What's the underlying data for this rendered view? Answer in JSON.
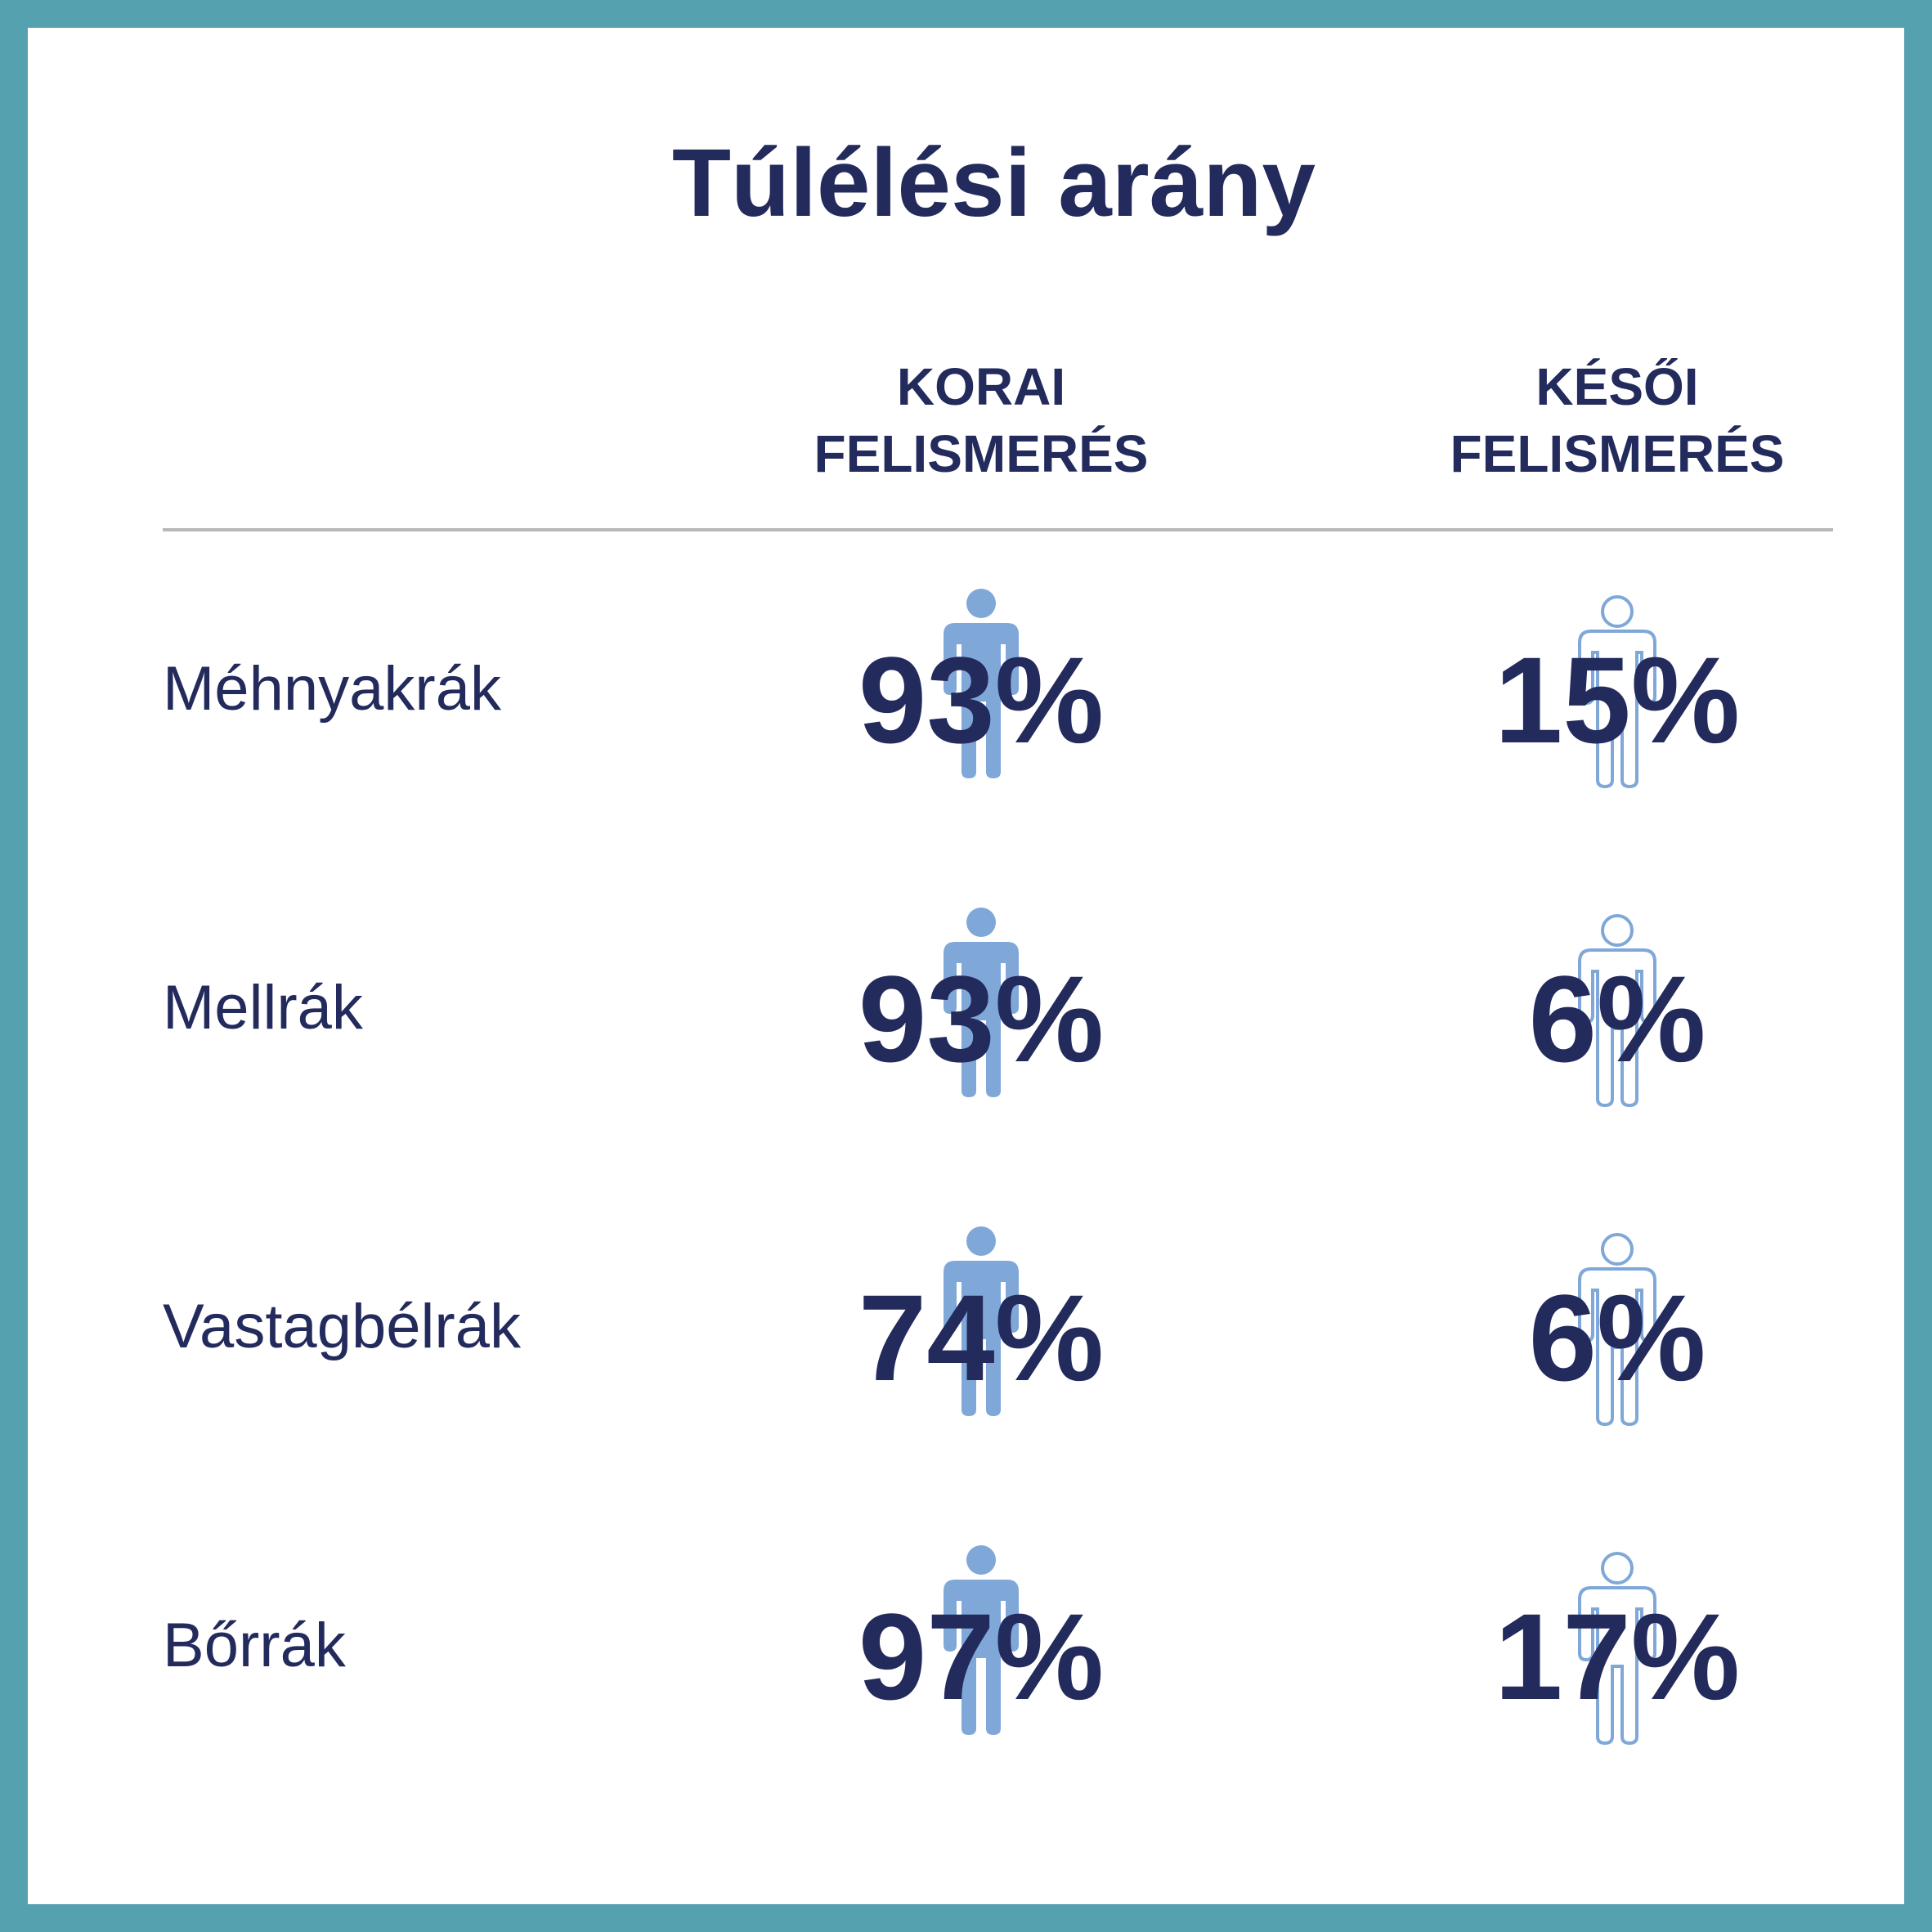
{
  "title": "Túlélési arány",
  "columns": {
    "early": {
      "line1": "KORAI",
      "line2": "FELISMERÉS"
    },
    "late": {
      "line1": "KÉSŐI",
      "line2": "FELISMERÉS"
    }
  },
  "colors": {
    "frame": "#55A1B0",
    "text": "#232A5C",
    "figure_filled": "#7FA8D9",
    "figure_outline": "#7FA8D9",
    "divider": "#B8B8B8"
  },
  "icons": {
    "early": "person-filled-icon",
    "late": "person-outline-icon"
  },
  "rows": [
    {
      "label": "Méhnyakrák",
      "early": "93%",
      "late": "15%"
    },
    {
      "label": "Mellrák",
      "early": "93%",
      "late": "6%"
    },
    {
      "label": "Vastagbélrák",
      "early": "74%",
      "late": "6%"
    },
    {
      "label": "Bőrrák",
      "early": "97%",
      "late": "17%"
    }
  ]
}
